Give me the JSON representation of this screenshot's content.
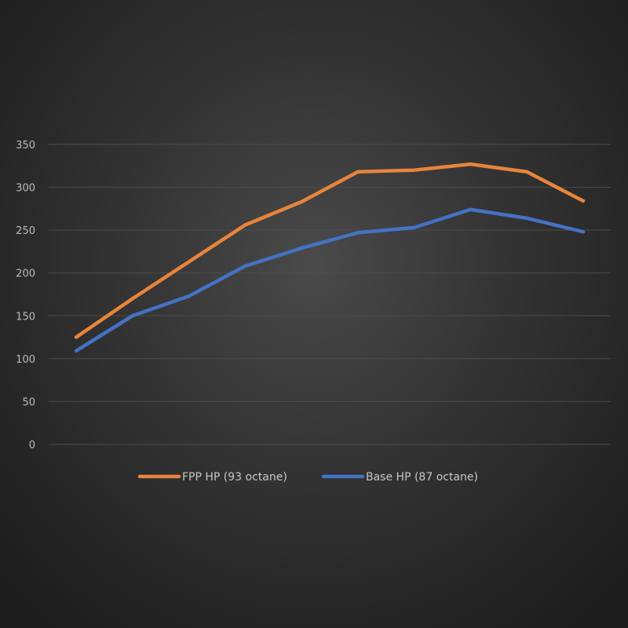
{
  "chart_data": {
    "type": "line",
    "title": "",
    "xlabel": "",
    "ylabel": "",
    "ylim": [
      0,
      350
    ],
    "yticks": [
      "0",
      "50",
      "100",
      "150",
      "200",
      "250",
      "300",
      "350"
    ],
    "grid": true,
    "legend_position": "bottom",
    "x": [
      1,
      2,
      3,
      4,
      5,
      6,
      7,
      8,
      9,
      10
    ],
    "series": [
      {
        "name": "FPP HP (93 octane)",
        "color": "#e8843c",
        "values": [
          125,
          170,
          213,
          256,
          283,
          318,
          320,
          327,
          318,
          284
        ]
      },
      {
        "name": "Base HP (87 octane)",
        "color": "#4472c4",
        "values": [
          109,
          150,
          173,
          208,
          229,
          247,
          253,
          274,
          264,
          248
        ]
      }
    ]
  }
}
